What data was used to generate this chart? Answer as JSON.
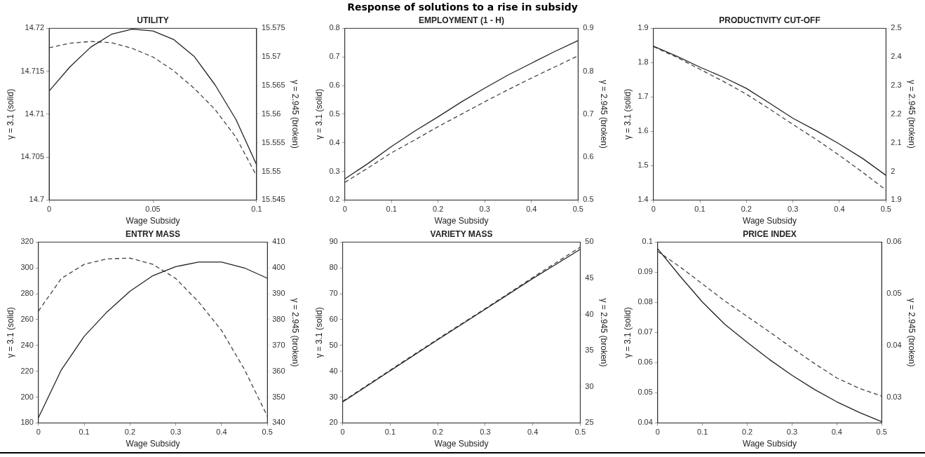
{
  "chart_data": [
    {
      "type": "line",
      "title": "UTILITY",
      "xlabel": "Wage Subsidy",
      "ylabel": "γ = 3.1 (solid)",
      "y2label": "γ = 2.945 (broken)",
      "annotations": [
        "Response of solutions to a rise in subsidy"
      ],
      "x": [
        0,
        0.01,
        0.02,
        0.03,
        0.04,
        0.05,
        0.06,
        0.07,
        0.08,
        0.09,
        0.1
      ],
      "series": [
        {
          "color": "#222222",
          "line_style": "solid",
          "values": [
            14.7127,
            14.7155,
            14.7178,
            14.7193,
            14.7199,
            14.7197,
            14.7187,
            14.7167,
            14.7134,
            14.7094,
            14.7041
          ]
        },
        {
          "color": "#444444",
          "line_style": "dashed",
          "axis": "y2",
          "values": [
            15.5716,
            15.5724,
            15.5727,
            15.5725,
            15.5715,
            15.57,
            15.5676,
            15.5645,
            15.5608,
            15.556,
            15.5492
          ]
        }
      ],
      "xlim": [
        0,
        0.1
      ],
      "xticks": [
        0,
        0.05,
        0.1
      ],
      "ylim": [
        14.7,
        14.72
      ],
      "yticks": [
        14.7,
        14.705,
        14.71,
        14.715,
        14.72
      ],
      "y2lim": [
        15.545,
        15.575
      ],
      "y2ticks": [
        15.545,
        15.55,
        15.555,
        15.56,
        15.565,
        15.57,
        15.575
      ],
      "grid": false,
      "legend": false,
      "marker": "none"
    },
    {
      "type": "line",
      "title": "EMPLOYMENT (1 - H)",
      "xlabel": "Wage Subsidy",
      "ylabel": "γ = 3.1 (solid)",
      "y2label": "γ = 2.945 (broken)",
      "x": [
        0,
        0.05,
        0.1,
        0.15,
        0.2,
        0.25,
        0.3,
        0.35,
        0.4,
        0.45,
        0.5
      ],
      "series": [
        {
          "color": "#222222",
          "line_style": "solid",
          "values": [
            0.274,
            0.328,
            0.387,
            0.441,
            0.491,
            0.543,
            0.591,
            0.637,
            0.678,
            0.719,
            0.757
          ]
        },
        {
          "color": "#444444",
          "line_style": "dashed",
          "axis": "y2",
          "values": [
            0.541,
            0.575,
            0.61,
            0.64,
            0.671,
            0.7,
            0.729,
            0.757,
            0.784,
            0.81,
            0.836
          ]
        }
      ],
      "xlim": [
        0,
        0.5
      ],
      "xticks": [
        0,
        0.1,
        0.2,
        0.3,
        0.4,
        0.5
      ],
      "ylim": [
        0.2,
        0.8
      ],
      "yticks": [
        0.2,
        0.3,
        0.4,
        0.5,
        0.6,
        0.7,
        0.8
      ],
      "y2lim": [
        0.5,
        0.9
      ],
      "y2ticks": [
        0.5,
        0.6,
        0.7,
        0.8,
        0.9
      ],
      "grid": false,
      "legend": false,
      "marker": "none"
    },
    {
      "type": "line",
      "title": "PRODUCTIVITY CUT-OFF",
      "xlabel": "Wage Subsidy",
      "ylabel": "γ = 3.1 (solid)",
      "y2label": "γ = 2.945 (broken)",
      "x": [
        0,
        0.05,
        0.1,
        0.15,
        0.2,
        0.25,
        0.3,
        0.35,
        0.4,
        0.45,
        0.5
      ],
      "series": [
        {
          "color": "#222222",
          "line_style": "solid",
          "values": [
            1.848,
            1.819,
            1.787,
            1.758,
            1.725,
            1.682,
            1.638,
            1.602,
            1.563,
            1.521,
            1.472
          ]
        },
        {
          "color": "#444444",
          "line_style": "dashed",
          "axis": "y2",
          "values": [
            2.436,
            2.399,
            2.357,
            2.315,
            2.27,
            2.218,
            2.164,
            2.112,
            2.056,
            1.997,
            1.935
          ]
        }
      ],
      "xlim": [
        0,
        0.5
      ],
      "xticks": [
        0,
        0.1,
        0.2,
        0.3,
        0.4,
        0.5
      ],
      "ylim": [
        1.4,
        1.9
      ],
      "yticks": [
        1.4,
        1.5,
        1.6,
        1.7,
        1.8,
        1.9
      ],
      "y2lim": [
        1.9,
        2.5
      ],
      "y2ticks": [
        1.9,
        2,
        2.1,
        2.2,
        2.3,
        2.4,
        2.5
      ],
      "grid": false,
      "legend": false,
      "marker": "none"
    },
    {
      "type": "line",
      "title": "ENTRY MASS",
      "xlabel": "Wage Subsidy",
      "ylabel": "γ = 3.1 (solid)",
      "y2label": "γ = 2.945 (broken)",
      "x": [
        0,
        0.05,
        0.1,
        0.15,
        0.2,
        0.25,
        0.3,
        0.35,
        0.4,
        0.45,
        0.5
      ],
      "series": [
        {
          "color": "#222222",
          "line_style": "solid",
          "values": [
            184,
            221,
            247,
            266,
            282,
            294,
            301,
            304.5,
            304.5,
            300,
            292
          ]
        },
        {
          "color": "#444444",
          "line_style": "dashed",
          "axis": "y2",
          "values": [
            383.3,
            395.9,
            401.4,
            403.5,
            403.8,
            401.4,
            395.9,
            386.8,
            375.8,
            360.7,
            342.6
          ]
        }
      ],
      "xlim": [
        0,
        0.5
      ],
      "xticks": [
        0,
        0.1,
        0.2,
        0.3,
        0.4,
        0.5
      ],
      "ylim": [
        180,
        320
      ],
      "yticks": [
        180,
        200,
        220,
        240,
        260,
        280,
        300,
        320
      ],
      "y2lim": [
        340,
        410
      ],
      "y2ticks": [
        340,
        350,
        360,
        370,
        380,
        390,
        400,
        410
      ],
      "grid": false,
      "legend": false,
      "marker": "none"
    },
    {
      "type": "line",
      "title": "VARIETY MASS",
      "xlabel": "Wage Subsidy",
      "ylabel": "γ = 3.1 (solid)",
      "y2label": "γ = 2.945 (broken)",
      "x": [
        0,
        0.1,
        0.2,
        0.3,
        0.4,
        0.5
      ],
      "series": [
        {
          "color": "#222222",
          "line_style": "solid",
          "values": [
            28.1,
            40.2,
            52.2,
            64,
            75.9,
            87.2
          ]
        },
        {
          "color": "#444444",
          "line_style": "dashed",
          "axis": "y2",
          "values": [
            28,
            32.3,
            36.6,
            40.8,
            45.1,
            49.3
          ]
        }
      ],
      "xlim": [
        0,
        0.5
      ],
      "xticks": [
        0,
        0.1,
        0.2,
        0.3,
        0.4,
        0.5
      ],
      "ylim": [
        20,
        90
      ],
      "yticks": [
        20,
        30,
        40,
        50,
        60,
        70,
        80,
        90
      ],
      "y2lim": [
        25,
        50
      ],
      "y2ticks": [
        25,
        30,
        35,
        40,
        45,
        50
      ],
      "grid": false,
      "legend": false,
      "marker": "none"
    },
    {
      "type": "line",
      "title": "PRICE INDEX",
      "xlabel": "Wage Subsidy",
      "ylabel": "γ = 3.1 (solid)",
      "y2label": "γ = 2.945 (broken)",
      "x": [
        0,
        0.05,
        0.1,
        0.15,
        0.2,
        0.25,
        0.3,
        0.35,
        0.4,
        0.45,
        0.5
      ],
      "series": [
        {
          "color": "#222222",
          "line_style": "solid",
          "values": [
            0.0978,
            0.0887,
            0.0801,
            0.0727,
            0.0667,
            0.061,
            0.0558,
            0.0511,
            0.047,
            0.0435,
            0.0404
          ]
        },
        {
          "color": "#444444",
          "line_style": "dashed",
          "axis": "y2",
          "values": [
            0.0582,
            0.0552,
            0.0519,
            0.0486,
            0.0456,
            0.0426,
            0.0395,
            0.0365,
            0.0337,
            0.0317,
            0.0302
          ]
        }
      ],
      "xlim": [
        0,
        0.5
      ],
      "xticks": [
        0,
        0.1,
        0.2,
        0.3,
        0.4,
        0.5
      ],
      "ylim": [
        0.04,
        0.1
      ],
      "yticks": [
        0.04,
        0.05,
        0.06,
        0.07,
        0.08,
        0.09,
        0.1
      ],
      "y2lim": [
        0.025,
        0.06
      ],
      "y2ticks": [
        0.03,
        0.04,
        0.05,
        0.06
      ],
      "grid": false,
      "legend": false,
      "marker": "none"
    }
  ]
}
